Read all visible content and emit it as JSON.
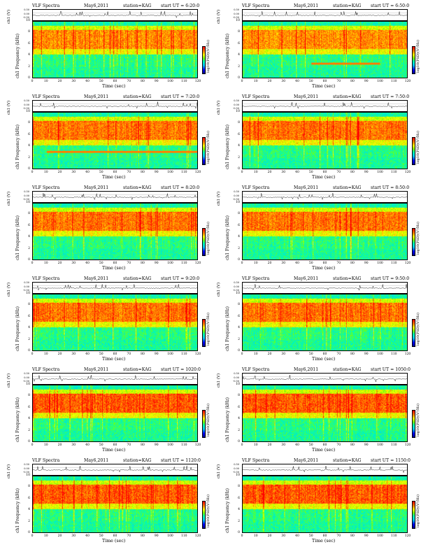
{
  "figure": {
    "header_left": "VLF Spectra",
    "header_month": "May",
    "header_day": "6",
    "header_year": ",2011",
    "station": "station=KAG",
    "start_prefix": "start  UT =",
    "channel_label": "ch1 (V)",
    "ylabel_prefix": "ch1",
    "ylabel": "Frequency (kHz)",
    "xlabel": "Time (sec)",
    "colorbar_label": "log10(PSD)(V²/Hz)",
    "colorbar_ticks": [
      "-",
      "-"
    ]
  },
  "chart_data": [
    {
      "type": "heatmap",
      "start_ut": "6:20:0",
      "x_ticks": [
        0,
        10,
        20,
        30,
        40,
        50,
        60,
        70,
        80,
        90,
        100,
        110,
        120
      ],
      "y_ticks": [
        0,
        2,
        4,
        6,
        8,
        10
      ],
      "ts_ticks": [
        "0.50",
        "0.00",
        "-0.50"
      ],
      "xlim": [
        0,
        120
      ],
      "ylim": [
        0,
        10
      ],
      "intensity_profile": "moderate",
      "narrowband": null
    },
    {
      "type": "heatmap",
      "start_ut": "6:50:0",
      "x_ticks": [
        0,
        10,
        20,
        30,
        40,
        50,
        60,
        70,
        80,
        90,
        100,
        110,
        120
      ],
      "y_ticks": [
        0,
        2,
        4,
        6,
        8,
        10
      ],
      "ts_ticks": [
        "0.50",
        "0.00",
        "-0.50"
      ],
      "xlim": [
        0,
        120
      ],
      "ylim": [
        0,
        10
      ],
      "intensity_profile": "moderate",
      "narrowband": {
        "freq_khz": 2.6,
        "t_start": 50,
        "t_end": 100
      }
    },
    {
      "type": "heatmap",
      "start_ut": "7:20:0",
      "x_ticks": [
        0,
        10,
        20,
        30,
        40,
        50,
        60,
        70,
        80,
        90,
        100,
        110,
        120
      ],
      "y_ticks": [
        0,
        2,
        4,
        6,
        8,
        10
      ],
      "ts_ticks": [
        "0.50",
        "0.00",
        "-0.50"
      ],
      "xlim": [
        0,
        120
      ],
      "ylim": [
        0,
        10
      ],
      "intensity_profile": "strong",
      "narrowband": {
        "freq_khz": 3.0,
        "t_start": 10,
        "t_end": 120
      }
    },
    {
      "type": "heatmap",
      "start_ut": "7:50:0",
      "x_ticks": [
        0,
        10,
        20,
        30,
        40,
        50,
        60,
        70,
        80,
        90,
        100,
        110,
        120
      ],
      "y_ticks": [
        0,
        2,
        4,
        6,
        8,
        10
      ],
      "ts_ticks": [
        "0.50",
        "0.00",
        "-0.50"
      ],
      "xlim": [
        0,
        120
      ],
      "ylim": [
        0,
        10
      ],
      "intensity_profile": "strong",
      "narrowband": null
    },
    {
      "type": "heatmap",
      "start_ut": "8:20:0",
      "x_ticks": [
        0,
        10,
        20,
        30,
        40,
        50,
        60,
        70,
        80,
        90,
        100,
        110,
        120
      ],
      "y_ticks": [
        0,
        2,
        4,
        6,
        8,
        10
      ],
      "ts_ticks": [
        "0.50",
        "0.00",
        "-0.50"
      ],
      "xlim": [
        0,
        120
      ],
      "ylim": [
        0,
        10
      ],
      "intensity_profile": "strong",
      "narrowband": null
    },
    {
      "type": "heatmap",
      "start_ut": "8:50:0",
      "x_ticks": [
        0,
        10,
        20,
        30,
        40,
        50,
        60,
        70,
        80,
        90,
        100,
        110,
        120
      ],
      "y_ticks": [
        0,
        2,
        4,
        6,
        8,
        10
      ],
      "ts_ticks": [
        "0.50",
        "0.00",
        "-0.50"
      ],
      "xlim": [
        0,
        120
      ],
      "ylim": [
        0,
        10
      ],
      "intensity_profile": "strong",
      "narrowband": null
    },
    {
      "type": "heatmap",
      "start_ut": "9:20:0",
      "x_ticks": [
        0,
        10,
        20,
        30,
        40,
        50,
        60,
        70,
        80,
        90,
        100,
        110,
        120
      ],
      "y_ticks": [
        0,
        2,
        4,
        6,
        8,
        10
      ],
      "ts_ticks": [
        "0.50",
        "0.00",
        "-0.50"
      ],
      "xlim": [
        0,
        120
      ],
      "ylim": [
        0,
        10
      ],
      "intensity_profile": "strong",
      "narrowband": null
    },
    {
      "type": "heatmap",
      "start_ut": "9:50:0",
      "x_ticks": [
        0,
        10,
        20,
        30,
        40,
        50,
        60,
        70,
        80,
        90,
        100,
        110,
        120
      ],
      "y_ticks": [
        0,
        2,
        4,
        6,
        8,
        10
      ],
      "ts_ticks": [
        "0.50",
        "0.00",
        "-0.50"
      ],
      "xlim": [
        0,
        120
      ],
      "ylim": [
        0,
        10
      ],
      "intensity_profile": "strong",
      "narrowband": null
    },
    {
      "type": "heatmap",
      "start_ut": "1020:0",
      "x_ticks": [
        0,
        10,
        20,
        30,
        40,
        50,
        60,
        70,
        80,
        90,
        100,
        110,
        120
      ],
      "y_ticks": [
        0,
        2,
        4,
        6,
        8,
        10
      ],
      "ts_ticks": [
        "0.50",
        "0.00",
        "-0.50"
      ],
      "xlim": [
        0,
        120
      ],
      "ylim": [
        0,
        10
      ],
      "intensity_profile": "very-strong",
      "narrowband": null
    },
    {
      "type": "heatmap",
      "start_ut": "1050:0",
      "x_ticks": [
        0,
        10,
        20,
        30,
        40,
        50,
        60,
        70,
        80,
        90,
        100,
        110,
        120
      ],
      "y_ticks": [
        0,
        2,
        4,
        6,
        8,
        10
      ],
      "ts_ticks": [
        "0.50",
        "0.00",
        "-0.50"
      ],
      "xlim": [
        0,
        120
      ],
      "ylim": [
        0,
        10
      ],
      "intensity_profile": "very-strong",
      "narrowband": null
    },
    {
      "type": "heatmap",
      "start_ut": "1120:0",
      "x_ticks": [
        0,
        10,
        20,
        30,
        40,
        50,
        60,
        70,
        80,
        90,
        100,
        110,
        120
      ],
      "y_ticks": [
        0,
        2,
        4,
        6,
        8,
        10
      ],
      "ts_ticks": [
        "0.50",
        "0.00",
        "-0.50"
      ],
      "xlim": [
        0,
        120
      ],
      "ylim": [
        0,
        10
      ],
      "intensity_profile": "very-strong",
      "narrowband": null
    },
    {
      "type": "heatmap",
      "start_ut": "1150:0",
      "x_ticks": [
        0,
        10,
        20,
        30,
        40,
        50,
        60,
        70,
        80,
        90,
        100,
        110,
        120
      ],
      "y_ticks": [
        0,
        2,
        4,
        6,
        8,
        10
      ],
      "ts_ticks": [
        "0.50",
        "0.00",
        "-0.50"
      ],
      "xlim": [
        0,
        120
      ],
      "ylim": [
        0,
        10
      ],
      "intensity_profile": "very-strong",
      "narrowband": null
    }
  ]
}
